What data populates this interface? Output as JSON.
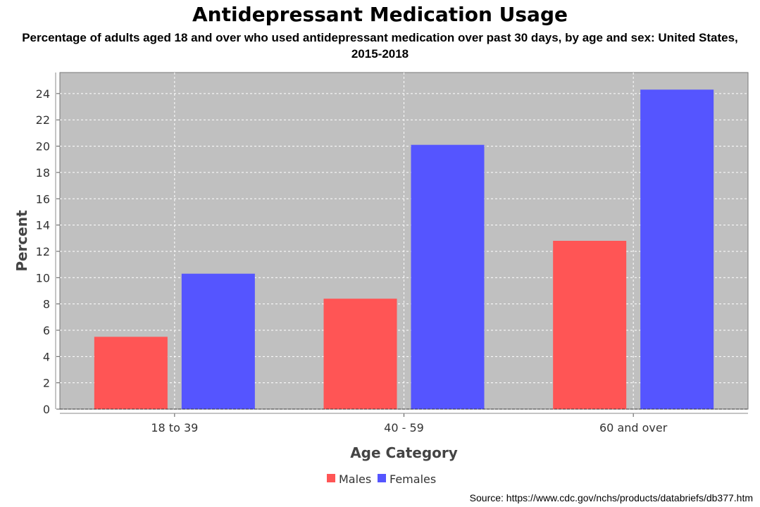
{
  "chart_data": {
    "type": "bar",
    "title": "Antidepressant Medication Usage",
    "subtitle": "Percentage of adults aged 18 and over who used antidepressant medication over past 30 days, by age and sex: United States, 2015-2018",
    "xlabel": "Age Category",
    "ylabel": "Percent",
    "categories": [
      "18 to 39",
      "40 - 59",
      "60 and over"
    ],
    "series": [
      {
        "name": "Males",
        "color": "#ff5555",
        "values": [
          5.5,
          8.4,
          12.8
        ]
      },
      {
        "name": "Females",
        "color": "#5555ff",
        "values": [
          10.3,
          20.1,
          24.3
        ]
      }
    ],
    "ylim": [
      0,
      25.6
    ],
    "yticks": [
      0,
      2,
      4,
      6,
      8,
      10,
      12,
      14,
      16,
      18,
      20,
      22,
      24
    ],
    "grid": true,
    "plot_background": "#c0c0c0",
    "legend_position": "bottom",
    "source": "Source: https://www.cdc.gov/nchs/products/databriefs/db377.htm"
  }
}
